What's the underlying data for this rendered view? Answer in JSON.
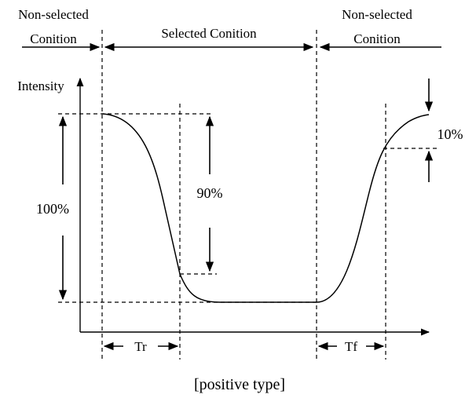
{
  "labels": {
    "non_selected_left_1": "Non-selected",
    "non_selected_left_2": "Conition",
    "selected_condition": "Selected Conition",
    "non_selected_right_1": "Non-selected",
    "non_selected_right_2": "Conition",
    "intensity": "Intensity",
    "pct_100": "100%",
    "pct_90": "90%",
    "pct_10": "10%",
    "tr": "Tr",
    "tf": "Tf",
    "caption": "[positive type]"
  }
}
